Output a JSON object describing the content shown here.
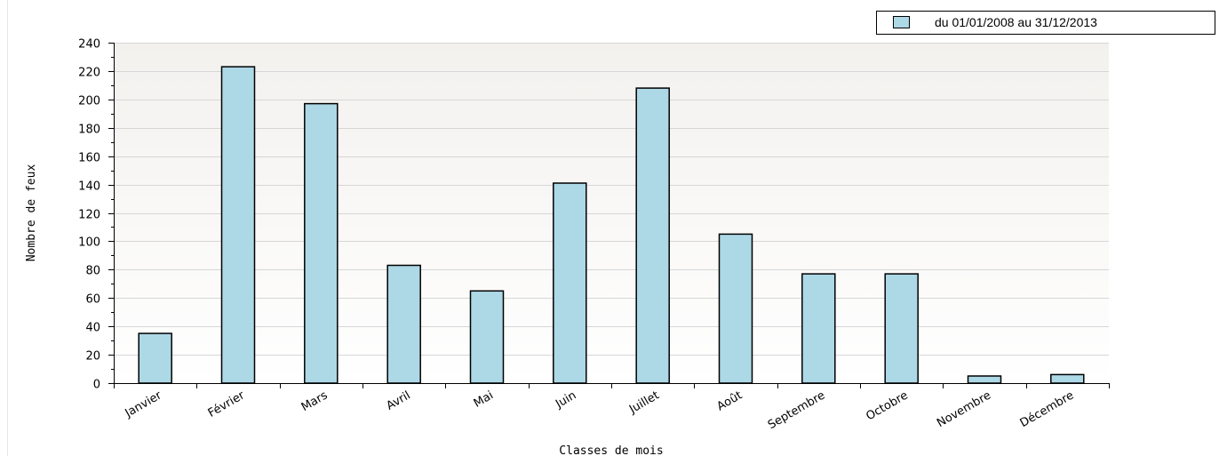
{
  "chart_data": {
    "type": "bar",
    "categories": [
      "Janvier",
      "Février",
      "Mars",
      "Avril",
      "Mai",
      "Juin",
      "Juillet",
      "Août",
      "Septembre",
      "Octobre",
      "Novembre",
      "Décembre"
    ],
    "series": [
      {
        "name": "du 01/01/2008 au 31/12/2013",
        "values": [
          35,
          223,
          197,
          83,
          65,
          141,
          208,
          105,
          77,
          77,
          5,
          6
        ]
      }
    ],
    "xlabel": "Classes de mois",
    "ylabel": "Nombre de feux",
    "ylim": [
      0,
      240
    ],
    "yticks": [
      0,
      20,
      40,
      60,
      80,
      100,
      120,
      140,
      160,
      180,
      200,
      220,
      240
    ],
    "grid": true,
    "legend": "top-right",
    "colors": {
      "bar_fill": "#add8e6",
      "bar_stroke": "#000000",
      "plot_bg_top": "#f3f1ee",
      "plot_bg_bottom": "#ffffff",
      "grid": "#d6d6d6"
    }
  }
}
